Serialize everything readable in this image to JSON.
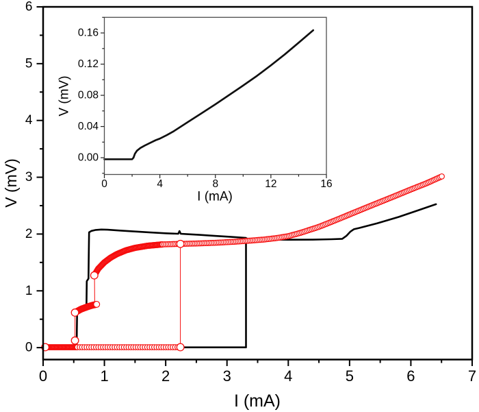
{
  "figure": {
    "description": "Hysteretic current-voltage characteristic with linear I-V inset",
    "background": "#ffffff",
    "colors": {
      "black": "#000000",
      "red": "#f60d0d",
      "marker_fill": "#ffffff",
      "inset_line": "#101010",
      "inset_frame": "#4d4d4d",
      "inset_tick": "#222222"
    }
  },
  "chart_data": [
    {
      "id": "main",
      "type": "line",
      "title": "",
      "xlabel": "I (mA)",
      "ylabel": "V (mV)",
      "xlim": [
        0,
        7
      ],
      "ylim": [
        -0.21,
        6
      ],
      "grid": false,
      "legend": "none",
      "x_major_ticks": [
        0,
        1,
        2,
        3,
        4,
        5,
        6,
        7
      ],
      "x_minor_step": 0.5,
      "x_tick_decimals": 0,
      "y_major_ticks": [
        0,
        1,
        2,
        3,
        4,
        5,
        6
      ],
      "y_minor_step": 0.5,
      "y_tick_decimals": 0,
      "series": [
        {
          "name": "black-upsweep",
          "type": "line",
          "color": "black",
          "width": 2.6,
          "points": [
            [
              0,
              0.005
            ],
            [
              3.31,
              0.005
            ],
            [
              3.31,
              1.92
            ],
            [
              3.45,
              1.912
            ],
            [
              3.7,
              1.903
            ],
            [
              4.0,
              1.9
            ],
            [
              4.4,
              1.901
            ],
            [
              4.7,
              1.908
            ],
            [
              4.88,
              1.916
            ],
            [
              4.95,
              1.97
            ],
            [
              5.01,
              2.04
            ],
            [
              5.07,
              2.085
            ],
            [
              5.16,
              2.108
            ],
            [
              5.45,
              2.19
            ],
            [
              5.8,
              2.3
            ],
            [
              6.1,
              2.41
            ],
            [
              6.41,
              2.525
            ]
          ]
        },
        {
          "name": "black-downsweep",
          "type": "line",
          "color": "black",
          "width": 2.6,
          "points": [
            [
              3.31,
              1.932
            ],
            [
              3.05,
              1.952
            ],
            [
              2.8,
              1.968
            ],
            [
              2.55,
              1.985
            ],
            [
              2.4,
              1.995
            ],
            [
              2.245,
              2.005
            ],
            [
              2.225,
              2.052
            ],
            [
              2.205,
              2.005
            ],
            [
              2.0,
              2.013
            ],
            [
              1.75,
              2.028
            ],
            [
              1.5,
              2.045
            ],
            [
              1.25,
              2.062
            ],
            [
              1.05,
              2.076
            ],
            [
              0.95,
              2.08
            ],
            [
              0.86,
              2.072
            ],
            [
              0.79,
              2.055
            ],
            [
              0.75,
              2.03
            ],
            [
              0.745,
              1.62
            ],
            [
              0.74,
              1.215
            ],
            [
              0.712,
              1.17
            ],
            [
              0.708,
              0.78
            ],
            [
              0.7,
              0.725
            ],
            [
              0.555,
              0.625
            ],
            [
              0.55,
              0.3
            ],
            [
              0.548,
              0.005
            ],
            [
              0.02,
              0.005
            ]
          ]
        },
        {
          "name": "red-jump-connector-upsweep",
          "type": "line",
          "color": "red",
          "width": 1.0,
          "points": [
            [
              2.24,
              0.01
            ],
            [
              2.24,
              1.823
            ]
          ]
        },
        {
          "name": "red-jump-connector-down-1",
          "type": "line",
          "color": "red",
          "width": 1.0,
          "points": [
            [
              0.838,
              1.262
            ],
            [
              0.842,
              0.758
            ]
          ]
        },
        {
          "name": "red-jump-connector-down-2",
          "type": "line",
          "color": "red",
          "width": 1.0,
          "points": [
            [
              0.52,
              0.608
            ],
            [
              0.52,
              0.132
            ]
          ]
        },
        {
          "name": "red-zero-branch-dense",
          "type": "chain",
          "color": "red",
          "marker_radius": 3.8,
          "marker_spacing": 1.1,
          "points": [
            [
              0.035,
              0.008
            ],
            [
              0.56,
              0.008
            ]
          ]
        },
        {
          "name": "red-zero-branch-rings",
          "type": "chain",
          "color": "red",
          "marker_radius": 3.8,
          "marker_spacing": 3.4,
          "points": [
            [
              0.56,
              0.008
            ],
            [
              2.235,
              0.008
            ]
          ]
        },
        {
          "name": "red-intermediate-branch",
          "type": "chain",
          "color": "red",
          "marker_radius": 4.4,
          "marker_spacing": 0.9,
          "points": [
            [
              0.527,
              0.622
            ],
            [
              0.62,
              0.678
            ],
            [
              0.72,
              0.718
            ],
            [
              0.8,
              0.745
            ],
            [
              0.875,
              0.763
            ]
          ]
        },
        {
          "name": "red-upper-branch-dense",
          "type": "chain",
          "color": "red",
          "marker_radius": 4.0,
          "marker_spacing": 1.1,
          "points": [
            [
              0.835,
              1.272
            ],
            [
              0.9,
              1.39
            ],
            [
              1.0,
              1.502
            ],
            [
              1.1,
              1.583
            ],
            [
              1.2,
              1.645
            ],
            [
              1.35,
              1.713
            ],
            [
              1.5,
              1.757
            ],
            [
              1.7,
              1.793
            ],
            [
              1.95,
              1.818
            ]
          ]
        },
        {
          "name": "red-upper-branch-rings",
          "type": "chain",
          "color": "red",
          "marker_radius": 3.8,
          "marker_spacing": 2.5,
          "points": [
            [
              1.95,
              1.818
            ],
            [
              2.2,
              1.826
            ],
            [
              2.5,
              1.834
            ],
            [
              2.8,
              1.846
            ],
            [
              3.1,
              1.863
            ],
            [
              3.4,
              1.886
            ],
            [
              3.6,
              1.903
            ],
            [
              3.8,
              1.928
            ],
            [
              4.0,
              1.963
            ],
            [
              4.2,
              2.022
            ],
            [
              4.5,
              2.127
            ],
            [
              4.8,
              2.256
            ],
            [
              5.1,
              2.39
            ],
            [
              5.4,
              2.522
            ],
            [
              5.7,
              2.652
            ],
            [
              6.0,
              2.785
            ],
            [
              6.25,
              2.892
            ],
            [
              6.52,
              3.022
            ]
          ]
        },
        {
          "name": "red-jump-endpoint-markers",
          "type": "markers",
          "color": "red",
          "marker_radius": 5.3,
          "points": [
            [
              0.035,
              0.008
            ],
            [
              2.24,
              0.008
            ],
            [
              2.24,
              1.826
            ],
            [
              0.52,
              0.125
            ],
            [
              0.52,
              0.617
            ],
            [
              0.835,
              1.272
            ]
          ]
        }
      ]
    },
    {
      "id": "inset",
      "type": "line",
      "title": "",
      "xlabel": "I (mA)",
      "ylabel": "V (mV)",
      "xlim": [
        0,
        16
      ],
      "ylim": [
        -0.0215,
        0.18
      ],
      "grid": false,
      "legend": "none",
      "x_major_ticks": [
        0,
        4,
        8,
        12,
        16
      ],
      "x_minor_step": 2,
      "x_tick_decimals": 0,
      "y_major_ticks": [
        0,
        0.04,
        0.08,
        0.12,
        0.16
      ],
      "y_minor_step": 0.02,
      "y_tick_decimals": 2,
      "series": [
        {
          "name": "inset-iv-curve",
          "type": "line",
          "color": "inset_line",
          "width": 2.7,
          "points": [
            [
              0,
              -0.002
            ],
            [
              1.0,
              -0.002
            ],
            [
              2.0,
              -0.002
            ],
            [
              2.1,
              0.0
            ],
            [
              2.2,
              0.005
            ],
            [
              2.35,
              0.009
            ],
            [
              2.6,
              0.0125
            ],
            [
              2.9,
              0.0155
            ],
            [
              3.3,
              0.019
            ],
            [
              3.7,
              0.0225
            ],
            [
              4.0,
              0.0245
            ],
            [
              4.5,
              0.029
            ],
            [
              5.0,
              0.034
            ],
            [
              6.0,
              0.0455
            ],
            [
              7.0,
              0.057
            ],
            [
              8.0,
              0.0685
            ],
            [
              9.0,
              0.0805
            ],
            [
              10.0,
              0.0925
            ],
            [
              11.0,
              0.105
            ],
            [
              12.0,
              0.1185
            ],
            [
              13.0,
              0.1325
            ],
            [
              14.0,
              0.1475
            ],
            [
              15.05,
              0.1635
            ]
          ]
        }
      ]
    }
  ]
}
